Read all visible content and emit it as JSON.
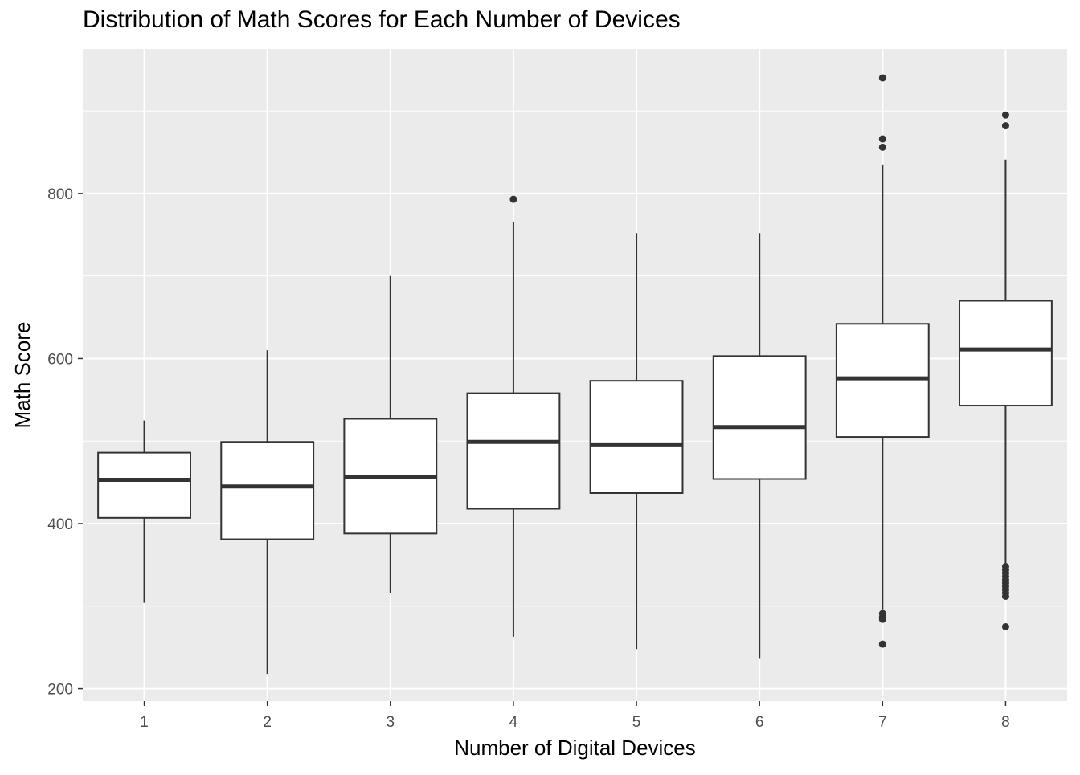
{
  "chart_data": {
    "type": "box",
    "title": "Distribution of Math Scores for Each Number of Devices",
    "xlabel": "Number of Digital Devices",
    "ylabel": "Math Score",
    "ylim": [
      185,
      975
    ],
    "yticks": [
      200,
      400,
      600,
      800
    ],
    "ytick_labels": [
      "200",
      "400",
      "600",
      "800"
    ],
    "grid": true,
    "colors": {
      "panel": "#ebebeb",
      "grid": "#ffffff",
      "box_fill": "#ffffff",
      "box_line": "#333333",
      "tick_text": "#4d4d4d"
    },
    "categories": [
      "1",
      "2",
      "3",
      "4",
      "5",
      "6",
      "7",
      "8"
    ],
    "boxes": [
      {
        "category": "1",
        "whisker_low": 304,
        "q1": 407,
        "median": 453,
        "q3": 486,
        "whisker_high": 525,
        "outliers": []
      },
      {
        "category": "2",
        "whisker_low": 218,
        "q1": 381,
        "median": 445,
        "q3": 499,
        "whisker_high": 610,
        "outliers": []
      },
      {
        "category": "3",
        "whisker_low": 316,
        "q1": 388,
        "median": 456,
        "q3": 527,
        "whisker_high": 700,
        "outliers": []
      },
      {
        "category": "4",
        "whisker_low": 263,
        "q1": 418,
        "median": 499,
        "q3": 558,
        "whisker_high": 766,
        "outliers": [
          793
        ]
      },
      {
        "category": "5",
        "whisker_low": 248,
        "q1": 437,
        "median": 496,
        "q3": 573,
        "whisker_high": 752,
        "outliers": []
      },
      {
        "category": "6",
        "whisker_low": 237,
        "q1": 454,
        "median": 517,
        "q3": 603,
        "whisker_high": 752,
        "outliers": []
      },
      {
        "category": "7",
        "whisker_low": 296,
        "q1": 505,
        "median": 576,
        "q3": 642,
        "whisker_high": 835,
        "outliers": [
          254,
          284,
          287,
          291,
          856,
          866,
          940
        ]
      },
      {
        "category": "8",
        "whisker_low": 350,
        "q1": 543,
        "median": 611,
        "q3": 670,
        "whisker_high": 841,
        "outliers": [
          275,
          312,
          316,
          320,
          324,
          328,
          332,
          336,
          340,
          344,
          348,
          882,
          895
        ]
      }
    ]
  }
}
